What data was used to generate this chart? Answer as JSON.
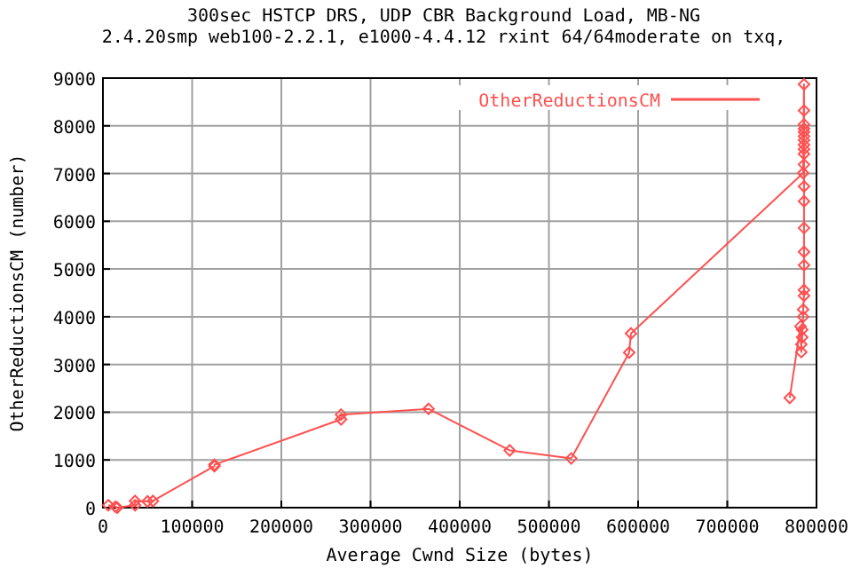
{
  "chart_data": {
    "type": "line",
    "title": "300sec HSTCP DRS, UDP CBR Background Load, MB-NG",
    "subtitle": "2.4.20smp web100-2.2.1, e1000-4.4.12 rxint 64/64moderate on txq,",
    "xlabel": "Average Cwnd Size (bytes)",
    "ylabel": "OtherReductionsCM (number)",
    "xlim": [
      0,
      800000
    ],
    "xticks": [
      0,
      100000,
      200000,
      300000,
      400000,
      500000,
      600000,
      700000,
      800000
    ],
    "ylim": [
      0,
      9000
    ],
    "yticks": [
      0,
      1000,
      2000,
      3000,
      4000,
      5000,
      6000,
      7000,
      8000,
      9000
    ],
    "grid": true,
    "legend": "top right",
    "marker": "diamond",
    "line_style": "solid",
    "series": [
      {
        "name": "OtherReductionsCM",
        "color": "#ff5050",
        "x": [
          6000,
          14000,
          16000,
          36000,
          36000,
          50000,
          56000,
          125000,
          125000,
          267000,
          267000,
          365000,
          456000,
          525000,
          590000,
          592000,
          785000,
          786000,
          786000,
          786000,
          786000,
          786000,
          786000,
          786000,
          786000,
          786000,
          786000,
          786000,
          786000,
          786000,
          786000,
          786000,
          786000,
          786000,
          786000,
          785000,
          785000,
          784000,
          784000,
          783000,
          783000,
          782000,
          770000
        ],
        "values": [
          50,
          20,
          0,
          50,
          140,
          130,
          140,
          870,
          900,
          1850,
          1950,
          2070,
          1200,
          1030,
          3250,
          3650,
          7010,
          8870,
          8320,
          8030,
          7940,
          7870,
          7780,
          7700,
          7600,
          7510,
          7410,
          7190,
          6730,
          6420,
          5860,
          5360,
          5080,
          4560,
          4440,
          4150,
          4000,
          3730,
          3570,
          3420,
          3260,
          3800,
          2300
        ]
      }
    ]
  }
}
